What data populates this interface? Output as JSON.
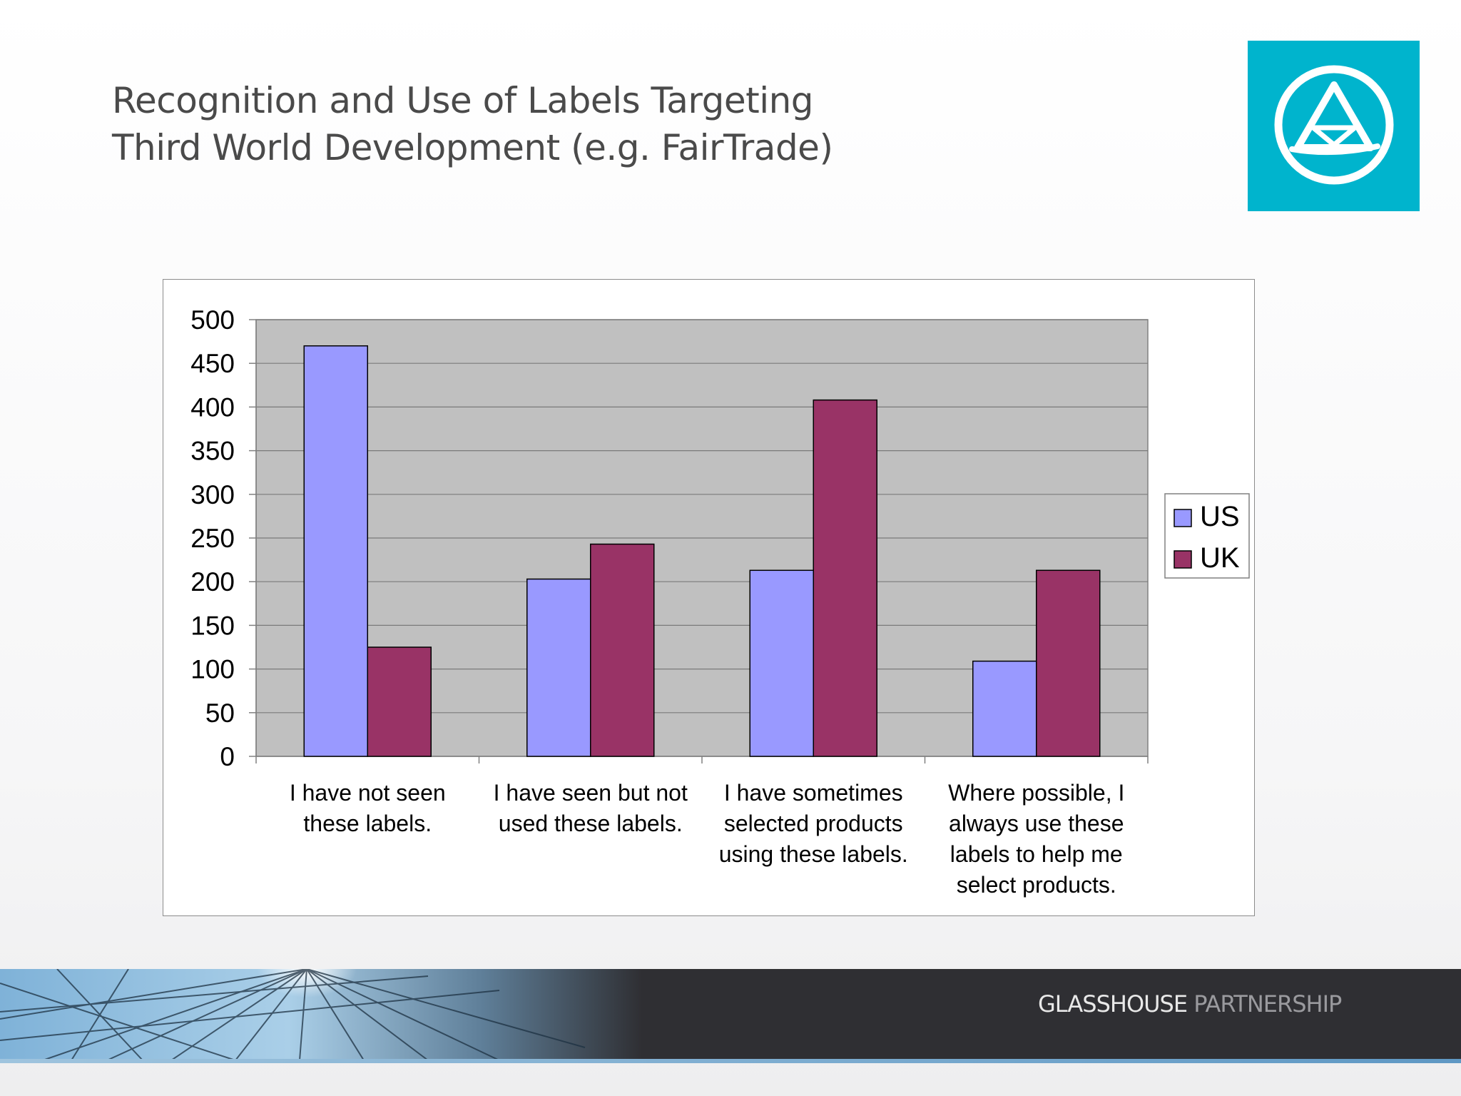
{
  "slide": {
    "title_lines": [
      "Recognition and Use of Labels Targeting",
      "Third World Development (e.g. FairTrade)"
    ]
  },
  "logo": {
    "icon": "triangle-in-circle-logo-icon",
    "background_color": "#00b4cd"
  },
  "footer": {
    "brand_primary": "GLASSHOUSE",
    "brand_secondary": " PARTNERSHIP"
  },
  "chart_data": {
    "type": "bar",
    "title": "",
    "xlabel": "",
    "ylabel": "",
    "categories": [
      [
        "I have not seen",
        "these labels."
      ],
      [
        "I have seen but not",
        "used these labels."
      ],
      [
        "I have sometimes",
        "selected products",
        "using these labels."
      ],
      [
        "Where possible, I",
        "always use these",
        "labels to help me",
        "select products."
      ]
    ],
    "series": [
      {
        "name": "US",
        "values": [
          470,
          203,
          213,
          109
        ],
        "color": "#9999ff"
      },
      {
        "name": "UK",
        "values": [
          125,
          243,
          408,
          213
        ],
        "color": "#993366"
      }
    ],
    "ylim": [
      0,
      500
    ],
    "yticks": [
      0,
      50,
      100,
      150,
      200,
      250,
      300,
      350,
      400,
      450,
      500
    ],
    "grid": true,
    "plot_background": "#c0c0c0",
    "legend_position": "right"
  }
}
